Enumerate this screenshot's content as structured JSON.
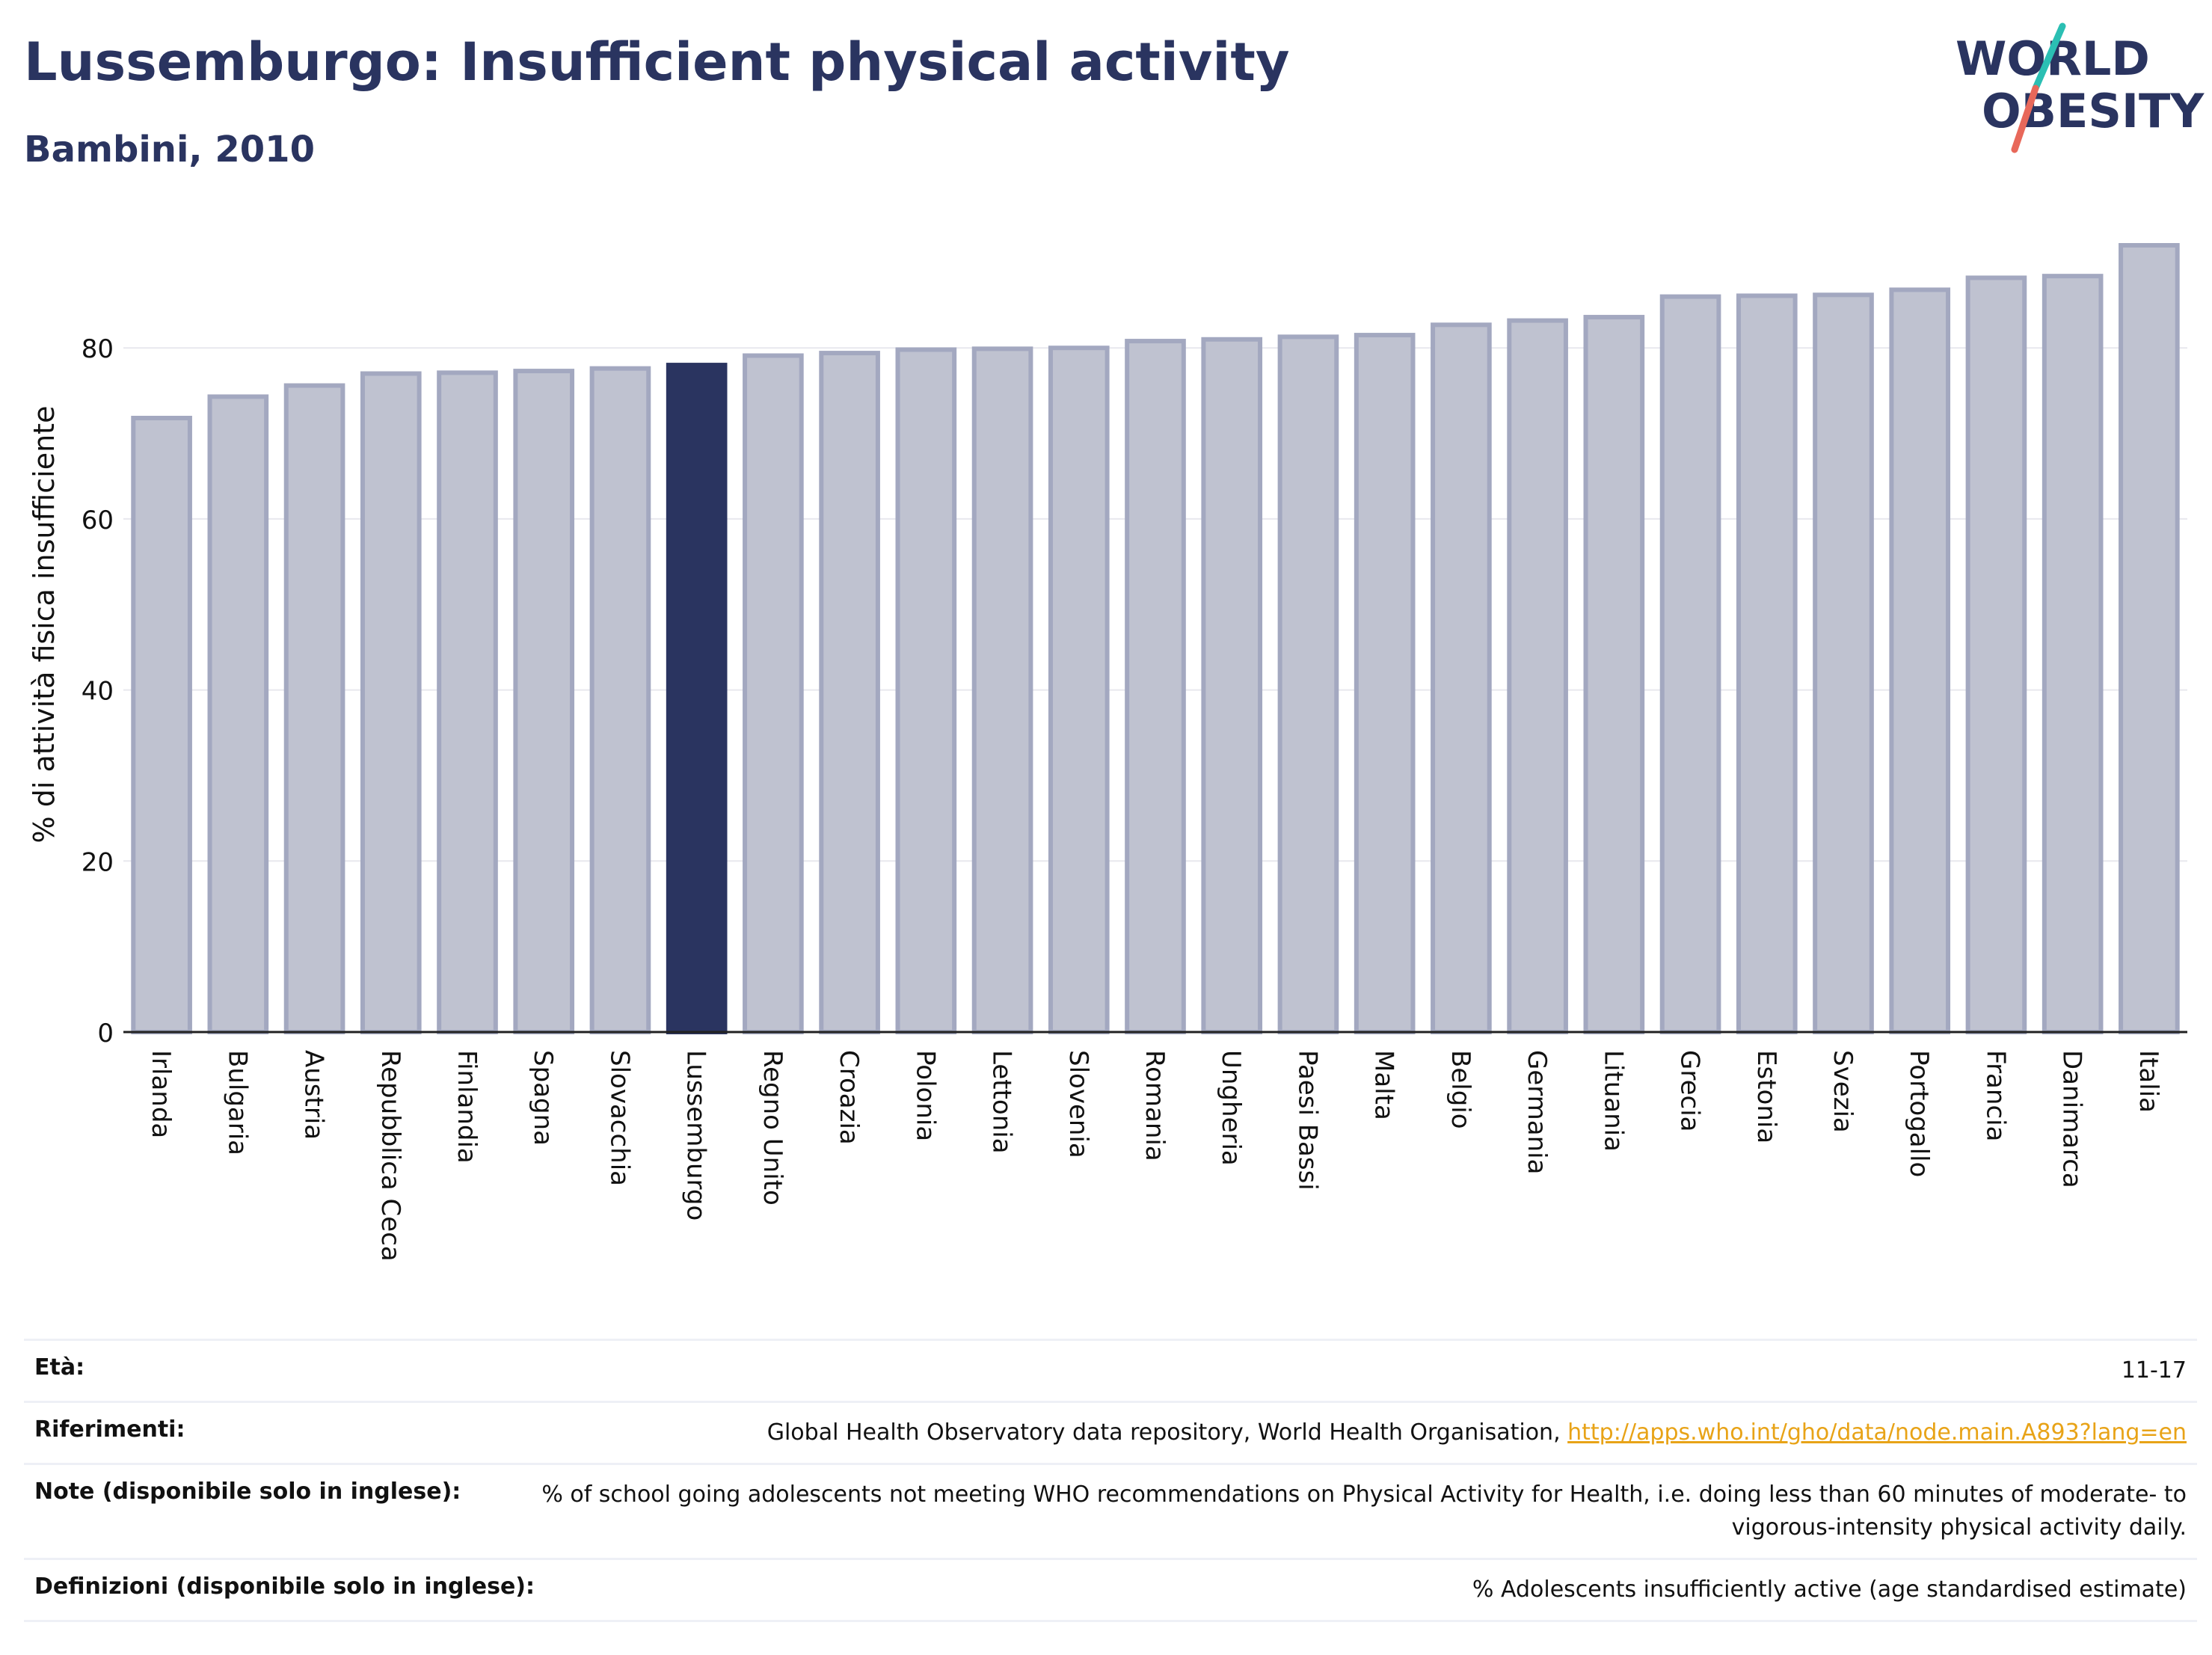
{
  "header": {
    "title": "Lussemburgo: Insufficient physical activity",
    "subtitle": "Bambini, 2010"
  },
  "logo": {
    "line1": "WORLD",
    "line2": "OBESITY",
    "colors": {
      "text": "#2a3460",
      "slash_top": "#2bbfb3",
      "slash_bottom": "#e8685a"
    }
  },
  "chart_data": {
    "type": "bar",
    "title": "",
    "xlabel": "",
    "ylabel": "% di attività fisica insufficiente",
    "ylim": [
      0,
      92
    ],
    "yticks": [
      0,
      20,
      40,
      60,
      80
    ],
    "grid": true,
    "highlight": "Lussemburgo",
    "colors": {
      "bar": "#bfc2d0",
      "bar_border": "#a3a8c0",
      "highlight": "#2a3460",
      "grid": "#e8e8ee",
      "axis": "#222222"
    },
    "categories": [
      "Irlanda",
      "Bulgaria",
      "Austria",
      "Repubblica Ceca",
      "Finlandia",
      "Spagna",
      "Slovacchia",
      "Lussemburgo",
      "Regno Unito",
      "Croazia",
      "Polonia",
      "Lettonia",
      "Slovenia",
      "Romania",
      "Ungheria",
      "Paesi Bassi",
      "Malta",
      "Belgio",
      "Germania",
      "Lituania",
      "Grecia",
      "Estonia",
      "Svezia",
      "Portogallo",
      "Francia",
      "Danimarca",
      "Italia"
    ],
    "values": [
      71.8,
      74.3,
      75.6,
      77.0,
      77.1,
      77.3,
      77.6,
      78.0,
      79.1,
      79.4,
      79.8,
      79.9,
      80.0,
      80.8,
      81.0,
      81.3,
      81.5,
      82.7,
      83.2,
      83.6,
      86.0,
      86.1,
      86.2,
      86.8,
      88.2,
      88.4,
      92.0
    ]
  },
  "info": {
    "rows": [
      {
        "label": "Età:",
        "value": "11-17"
      },
      {
        "label": "Riferimenti:",
        "value": "Global Health Observatory data repository, World Health Organisation, ",
        "link": "http://apps.who.int/gho/data/node.main.A893?lang=en"
      },
      {
        "label": "Note (disponibile solo in inglese):",
        "value": "% of school going adolescents not meeting WHO recommendations on Physical Activity for Health, i.e. doing less than 60 minutes of moderate- to vigorous-intensity physical activity daily."
      },
      {
        "label": "Definizioni (disponibile solo in inglese):",
        "value": "% Adolescents insufficiently active (age standardised estimate)"
      }
    ]
  }
}
